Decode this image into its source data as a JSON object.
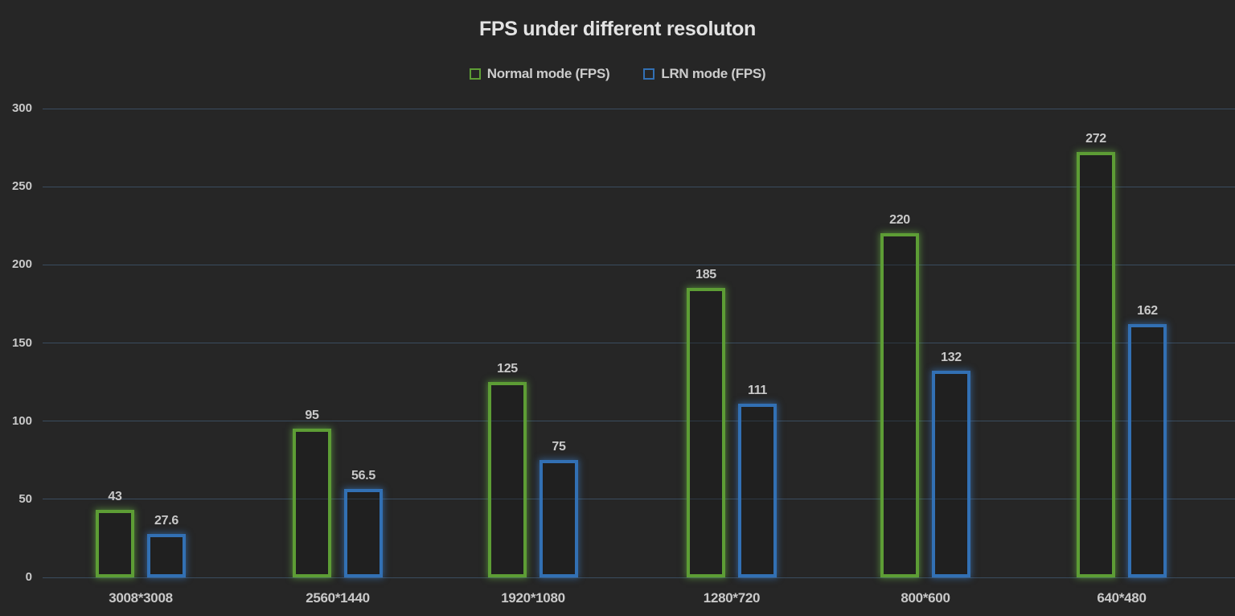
{
  "title": "FPS under different resoluton",
  "chart_data": {
    "type": "bar",
    "title": "FPS under different resoluton",
    "categories": [
      "3008*3008",
      "2560*1440",
      "1920*1080",
      "1280*720",
      "800*600",
      "640*480"
    ],
    "series": [
      {
        "name": "Normal mode (FPS)",
        "color": "#5d9d35",
        "values": [
          43,
          95,
          125,
          185,
          220,
          272
        ]
      },
      {
        "name": "LRN mode (FPS)",
        "color": "#3270b4",
        "values": [
          27.6,
          56.5,
          75,
          111,
          132,
          162
        ]
      }
    ],
    "xlabel": "",
    "ylabel": "",
    "ylim": [
      0,
      300
    ],
    "yticks": [
      0,
      50,
      100,
      150,
      200,
      250,
      300
    ],
    "grid": true,
    "legend_position": "top",
    "bar_style": "outlined-with-glow",
    "value_labels_shown": true,
    "colors": {
      "background": "#262626",
      "gridline": "#3a4c5f",
      "tick_text": "#c9c9c9",
      "title_text": "#e3e3e3",
      "legend_text": "#cccccc"
    }
  }
}
